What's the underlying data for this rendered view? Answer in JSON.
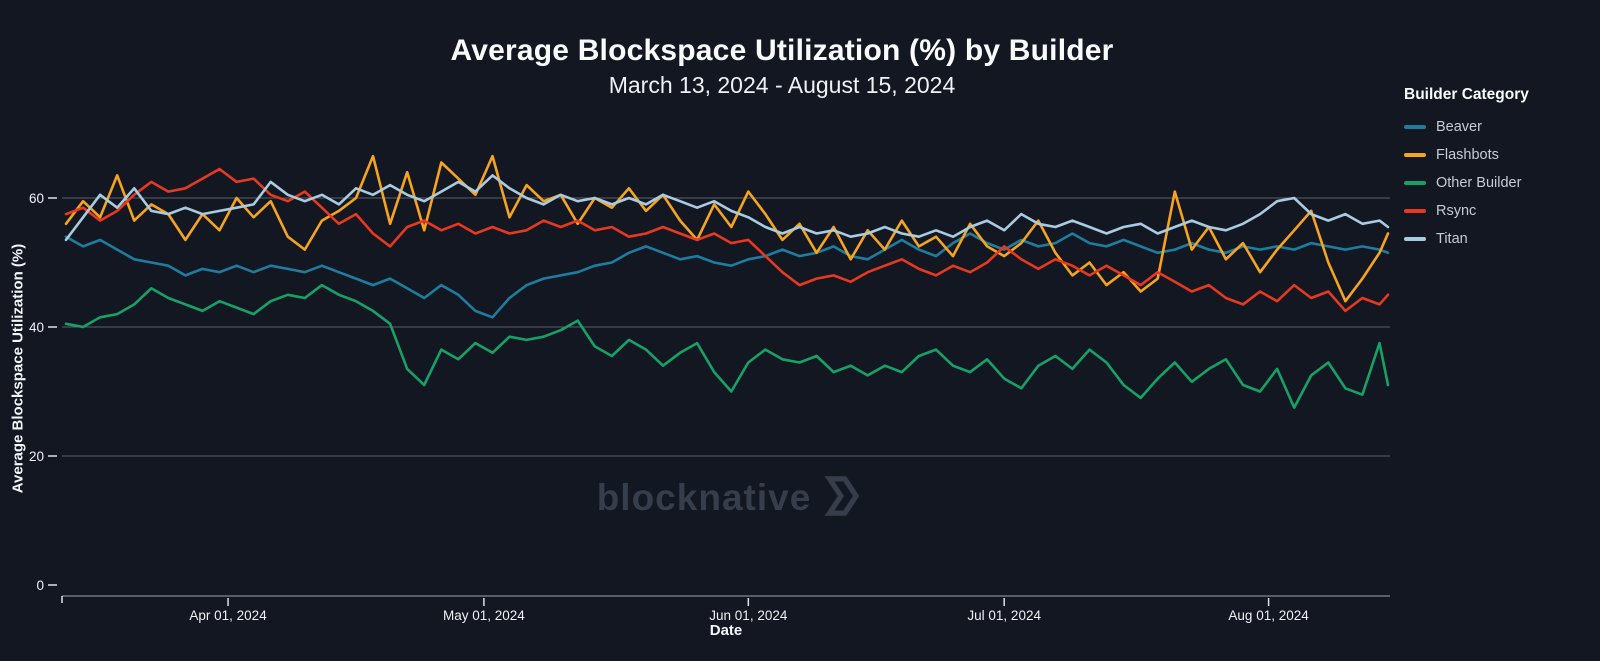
{
  "header": {
    "title": "Average Blockspace Utilization (%) by Builder",
    "subtitle": "March 13, 2024 - August 15, 2024"
  },
  "axes": {
    "x_label": "Date",
    "y_label": "Average Blockspace Utilization (%)"
  },
  "legend": {
    "title": "Builder Category",
    "items": [
      {
        "label": "Beaver",
        "color": "#1e7d9f"
      },
      {
        "label": "Flashbots",
        "color": "#f5a41f"
      },
      {
        "label": "Other Builder",
        "color": "#16a266"
      },
      {
        "label": "Rsync",
        "color": "#e6391f"
      },
      {
        "label": "Titan",
        "color": "#a9cbe2"
      }
    ]
  },
  "watermark": {
    "text": "blocknative",
    "logo": "blocknative-chevron-icon",
    "color": "#363d4b"
  },
  "theme": {
    "background": "#131722",
    "grid_color": "rgba(209,213,221,0.38)",
    "axis_line_color": "rgba(209,213,221,0.5)",
    "tick_text_color": "#eef0f3"
  },
  "chart_data": {
    "type": "line",
    "title": "Average Blockspace Utilization (%) by Builder",
    "subtitle": "March 13, 2024 - August 15, 2024",
    "xlabel": "Date",
    "ylabel": "Average Blockspace Utilization (%)",
    "x_start_date": "2024-03-13",
    "x_end_date": "2024-08-15",
    "x_total_days": 155,
    "grid": true,
    "legend_position": "right",
    "ylim": [
      0,
      70
    ],
    "y_ticks": [
      0,
      20,
      40,
      60
    ],
    "x_ticks": [
      {
        "day": 19,
        "label": "Apr 01, 2024"
      },
      {
        "day": 49,
        "label": "May 01, 2024"
      },
      {
        "day": 80,
        "label": "Jun 01, 2024"
      },
      {
        "day": 110,
        "label": "Jul 01, 2024"
      },
      {
        "day": 141,
        "label": "Aug 01, 2024"
      }
    ],
    "days": [
      0,
      2,
      4,
      6,
      8,
      10,
      12,
      14,
      16,
      18,
      20,
      22,
      24,
      26,
      28,
      30,
      32,
      34,
      36,
      38,
      40,
      42,
      44,
      46,
      48,
      50,
      52,
      54,
      56,
      58,
      60,
      62,
      64,
      66,
      68,
      70,
      72,
      74,
      76,
      78,
      80,
      82,
      84,
      86,
      88,
      90,
      92,
      94,
      96,
      98,
      100,
      102,
      104,
      106,
      108,
      110,
      112,
      114,
      116,
      118,
      120,
      122,
      124,
      126,
      128,
      130,
      132,
      134,
      136,
      138,
      140,
      142,
      144,
      146,
      148,
      150,
      152,
      154,
      155
    ],
    "series": [
      {
        "name": "Beaver",
        "color": "#1e7d9f",
        "values": [
          54,
          52.5,
          53.5,
          52,
          50.5,
          50,
          49.5,
          48,
          49,
          48.5,
          49.5,
          48.5,
          49.5,
          49,
          48.5,
          49.5,
          48.5,
          47.5,
          46.5,
          47.5,
          46,
          44.5,
          46.5,
          45,
          42.5,
          41.5,
          44.5,
          46.5,
          47.5,
          48,
          48.5,
          49.5,
          50,
          51.5,
          52.5,
          51.5,
          50.5,
          51,
          50,
          49.5,
          50.5,
          51,
          52,
          51,
          51.5,
          52.5,
          51,
          50.5,
          52,
          53.5,
          52,
          51,
          53,
          54.5,
          53,
          52,
          53.5,
          52.5,
          53,
          54.5,
          53,
          52.5,
          53.5,
          52.5,
          51.5,
          52,
          53,
          52,
          51.5,
          52.5,
          52,
          52.5,
          52,
          53,
          52.5,
          52,
          52.5,
          52,
          51.5
        ]
      },
      {
        "name": "Flashbots",
        "color": "#f5a41f",
        "values": [
          56,
          59.5,
          57,
          63.5,
          56.5,
          59,
          57.5,
          53.5,
          57.5,
          55,
          60,
          57,
          59.5,
          54,
          52,
          56.5,
          58,
          60,
          66.5,
          56,
          64,
          55,
          65.5,
          63,
          60.5,
          66.5,
          57,
          62,
          59.5,
          60.5,
          56,
          60,
          58.5,
          61.5,
          58,
          60.5,
          56.5,
          53.5,
          59,
          55.5,
          61,
          57.5,
          53.5,
          56,
          51.5,
          55.5,
          50.5,
          55,
          52,
          56.5,
          52.5,
          54,
          51,
          56,
          52.5,
          51,
          53,
          56.5,
          51.5,
          48,
          50,
          46.5,
          48.5,
          45.5,
          47.5,
          61,
          52,
          55.5,
          50.5,
          53,
          48.5,
          52,
          55,
          58,
          50,
          44,
          47.5,
          51.5,
          54.5
        ]
      },
      {
        "name": "Other Builder",
        "color": "#16a266",
        "values": [
          40.5,
          40,
          41.5,
          42,
          43.5,
          46,
          44.5,
          43.5,
          42.5,
          44,
          43,
          42,
          44,
          45,
          44.5,
          46.5,
          45,
          44,
          42.5,
          40.5,
          33.5,
          31,
          36.5,
          35,
          37.5,
          36,
          38.5,
          38,
          38.5,
          39.5,
          41,
          37,
          35.5,
          38,
          36.5,
          34,
          36,
          37.5,
          33,
          30,
          34.5,
          36.5,
          35,
          34.5,
          35.5,
          33,
          34,
          32.5,
          34,
          33,
          35.5,
          36.5,
          34,
          33,
          35,
          32,
          30.5,
          34,
          35.5,
          33.5,
          36.5,
          34.5,
          31,
          29,
          32,
          34.5,
          31.5,
          33.5,
          35,
          31,
          30,
          33.5,
          27.5,
          32.5,
          34.5,
          30.5,
          29.5,
          37.5,
          31
        ]
      },
      {
        "name": "Rsync",
        "color": "#e6391f",
        "values": [
          57.5,
          58.5,
          56.5,
          58,
          60.5,
          62.5,
          61,
          61.5,
          63,
          64.5,
          62.5,
          63,
          60.5,
          59.5,
          61,
          58.5,
          56,
          57.5,
          54.5,
          52.5,
          55.5,
          56.5,
          55,
          56,
          54.5,
          55.5,
          54.5,
          55,
          56.5,
          55.5,
          56.5,
          55,
          55.5,
          54,
          54.5,
          55.5,
          54.5,
          53.5,
          54.5,
          53,
          53.5,
          51,
          48.5,
          46.5,
          47.5,
          48,
          47,
          48.5,
          49.5,
          50.5,
          49,
          48,
          49.5,
          48.5,
          50,
          52.5,
          50.5,
          49,
          50.5,
          49.5,
          48,
          49.5,
          48,
          46.5,
          48.5,
          47,
          45.5,
          46.5,
          44.5,
          43.5,
          45.5,
          44,
          46.5,
          44.5,
          45.5,
          42.5,
          44.5,
          43.5,
          45
        ]
      },
      {
        "name": "Titan",
        "color": "#a9cbe2",
        "values": [
          53.5,
          57,
          60.5,
          58.5,
          61.5,
          58,
          57.5,
          58.5,
          57.5,
          58,
          58.5,
          59,
          62.5,
          60.5,
          59.5,
          60.5,
          59,
          61.5,
          60.5,
          62,
          60.5,
          59.5,
          61,
          62.5,
          61,
          63.5,
          61.5,
          60,
          59,
          60.5,
          59.5,
          60,
          59,
          60,
          59,
          60.5,
          59.5,
          58.5,
          59.5,
          58,
          57,
          55.5,
          54.5,
          55.5,
          54.5,
          55,
          54,
          54.5,
          55.5,
          54.5,
          54,
          55,
          54,
          55.5,
          56.5,
          55,
          57.5,
          56,
          55.5,
          56.5,
          55.5,
          54.5,
          55.5,
          56,
          54.5,
          55.5,
          56.5,
          55.5,
          55,
          56,
          57.5,
          59.5,
          60,
          57.5,
          56.5,
          57.5,
          56,
          56.5,
          55.5
        ]
      }
    ]
  }
}
